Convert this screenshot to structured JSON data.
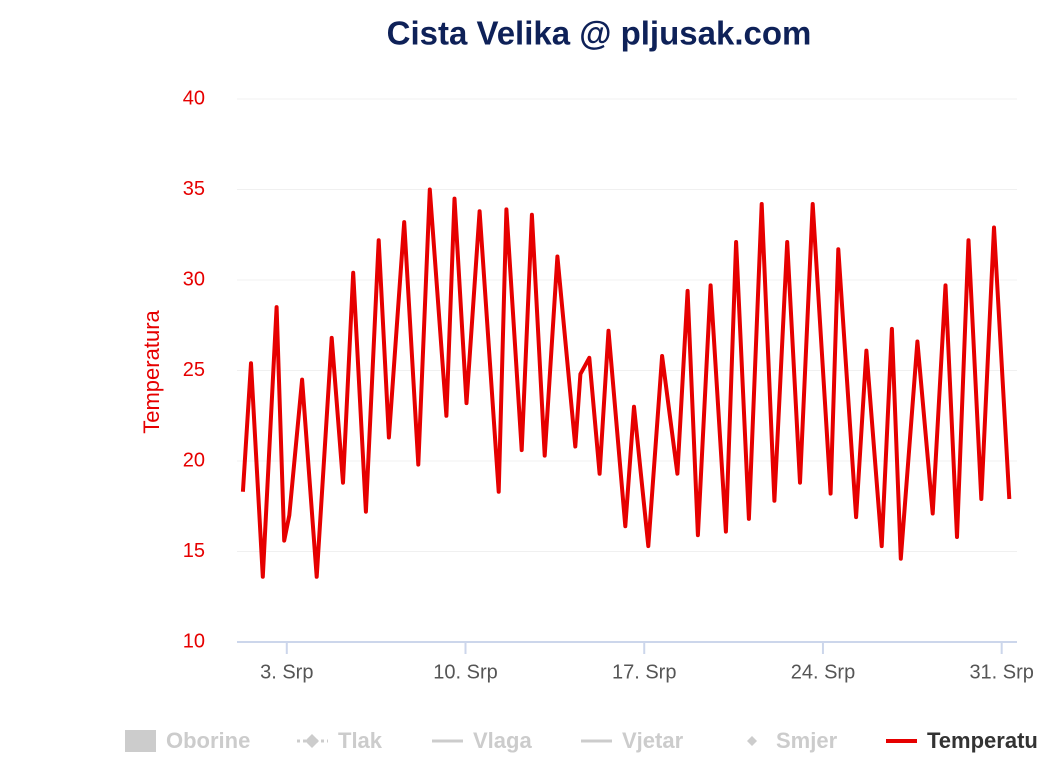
{
  "chart_data": {
    "type": "line",
    "title": "Cista Velika @ pljusak.com",
    "y_label": "Temperatura",
    "x": [
      1.28,
      1.6,
      2.06,
      2.6,
      2.9,
      3.1,
      3.6,
      4.17,
      4.76,
      5.2,
      5.6,
      6.1,
      6.6,
      7.0,
      7.6,
      8.15,
      8.6,
      9.25,
      9.57,
      10.04,
      10.55,
      11.3,
      11.6,
      12.2,
      12.6,
      13.1,
      13.6,
      14.3,
      14.5,
      14.85,
      15.25,
      15.6,
      16.26,
      16.6,
      17.16,
      17.7,
      18.3,
      18.7,
      19.1,
      19.6,
      20.2,
      20.6,
      21.1,
      21.6,
      22.1,
      22.6,
      23.1,
      23.6,
      24.3,
      24.6,
      25.3,
      25.7,
      26.3,
      26.7,
      27.05,
      27.7,
      28.3,
      28.8,
      29.25,
      29.7,
      30.2,
      30.7,
      31.3
    ],
    "series": [
      {
        "name": "Temperatura",
        "color": "#e60000",
        "values": [
          18.3,
          25.4,
          13.6,
          28.5,
          15.6,
          17,
          24.5,
          13.6,
          26.8,
          18.8,
          30.4,
          17.2,
          32.2,
          21.3,
          33.2,
          19.8,
          35,
          22.5,
          34.5,
          23.2,
          33.8,
          18.3,
          33.9,
          20.6,
          33.6,
          20.3,
          31.3,
          20.8,
          24.8,
          25.7,
          19.3,
          27.2,
          16.4,
          23,
          15.3,
          25.8,
          19.3,
          29.4,
          15.9,
          29.7,
          16.1,
          32.1,
          16.8,
          34.2,
          17.8,
          32.1,
          18.8,
          34.2,
          18.2,
          31.7,
          16.9,
          26.1,
          15.3,
          27.3,
          14.6,
          26.6,
          17.1,
          29.7,
          15.8,
          32.2,
          17.9,
          32.9,
          17.9
        ]
      }
    ],
    "legend": [
      {
        "name": "Oborine",
        "symbol": "rect",
        "visible": false
      },
      {
        "name": "Tlak",
        "symbol": "dash-diamond",
        "visible": false
      },
      {
        "name": "Vlaga",
        "symbol": "line",
        "visible": false
      },
      {
        "name": "Vjetar",
        "symbol": "line",
        "visible": false
      },
      {
        "name": "Smjer",
        "symbol": "diamond",
        "visible": false
      },
      {
        "name": "Temperatura",
        "symbol": "line",
        "visible": true
      }
    ],
    "xlim": [
      1.05,
      31.6
    ],
    "xticks": [
      {
        "value": 3,
        "label": "3. Srp"
      },
      {
        "value": 10,
        "label": "10. Srp"
      },
      {
        "value": 17,
        "label": "17. Srp"
      },
      {
        "value": 24,
        "label": "24. Srp"
      },
      {
        "value": 31,
        "label": "31. Srp"
      }
    ],
    "ylim": [
      10,
      40
    ],
    "yticks": [
      10,
      15,
      20,
      25,
      30,
      35,
      40
    ],
    "grid": true
  }
}
